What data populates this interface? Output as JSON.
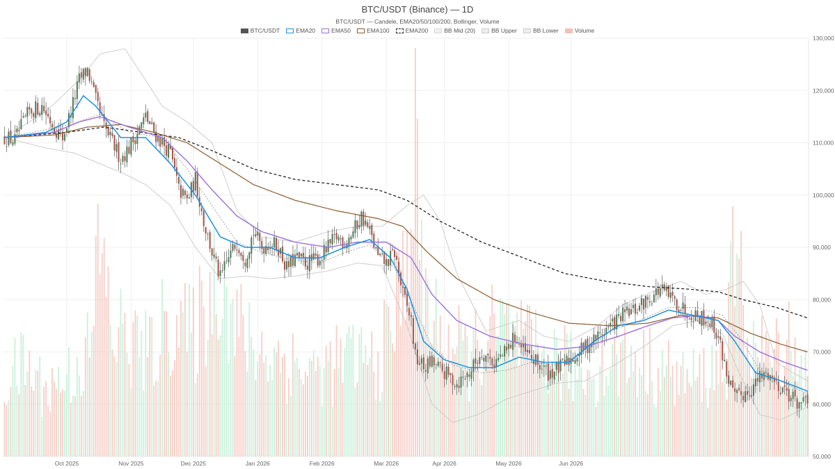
{
  "chart_data": {
    "type": "candlestick",
    "title": "BTC/USDT (Binance) — 1D",
    "subtitle": "BTC/USDT — Candele, EMA20/50/100/200, Bollinger, Volume",
    "legend": [
      {
        "label": "BTC/USDT",
        "color": "#555555",
        "style": "solid-fill"
      },
      {
        "label": "EMA20",
        "color": "#1a8fe0",
        "style": "line"
      },
      {
        "label": "EMA50",
        "color": "#9b6fd8",
        "style": "line"
      },
      {
        "label": "EMA100",
        "color": "#8b5a2b",
        "style": "line"
      },
      {
        "label": "EMA200",
        "color": "#222222",
        "style": "dashed"
      },
      {
        "label": "BB Mid (20)",
        "color": "#bbbbbb",
        "style": "dotted"
      },
      {
        "label": "BB Upper",
        "color": "#cccccc",
        "style": "thin"
      },
      {
        "label": "BB Lower",
        "color": "#cccccc",
        "style": "thin"
      },
      {
        "label": "Volume",
        "color": "#f4c0b8",
        "style": "fill"
      }
    ],
    "x_labels": [
      "Oct 2025",
      "Nov 2025",
      "Dec 2025",
      "Jan 2026",
      "Feb 2026",
      "Mar 2026",
      "Apr 2026",
      "May 2026",
      "Jun 2026"
    ],
    "y_ticks": [
      "50,000",
      "60,000",
      "70,000",
      "80,000",
      "90,000",
      "100,000",
      "110,000",
      "120,000",
      "130,000"
    ],
    "ylim": [
      50000,
      130000
    ],
    "price_path": [
      [
        0,
        111000
      ],
      [
        5,
        110500
      ],
      [
        8,
        113000
      ],
      [
        12,
        116000
      ],
      [
        18,
        117000
      ],
      [
        24,
        113000
      ],
      [
        28,
        111000
      ],
      [
        32,
        116000
      ],
      [
        36,
        122000
      ],
      [
        40,
        124000
      ],
      [
        44,
        118000
      ],
      [
        48,
        113000
      ],
      [
        52,
        110000
      ],
      [
        56,
        107000
      ],
      [
        60,
        109000
      ],
      [
        64,
        112000
      ],
      [
        68,
        115000
      ],
      [
        72,
        112000
      ],
      [
        76,
        110000
      ],
      [
        80,
        108000
      ],
      [
        84,
        101000
      ],
      [
        88,
        99000
      ],
      [
        92,
        103000
      ],
      [
        96,
        95000
      ],
      [
        100,
        89000
      ],
      [
        104,
        84000
      ],
      [
        108,
        88000
      ],
      [
        112,
        91000
      ],
      [
        116,
        88000
      ],
      [
        120,
        93000
      ],
      [
        124,
        90000
      ],
      [
        128,
        91000
      ],
      [
        132,
        90000
      ],
      [
        136,
        86000
      ],
      [
        140,
        88000
      ],
      [
        146,
        87000
      ],
      [
        152,
        88000
      ],
      [
        156,
        90000
      ],
      [
        160,
        92000
      ],
      [
        164,
        91000
      ],
      [
        168,
        93000
      ],
      [
        172,
        96000
      ],
      [
        176,
        93000
      ],
      [
        180,
        88000
      ],
      [
        184,
        87000
      ],
      [
        188,
        89000
      ],
      [
        192,
        81000
      ],
      [
        196,
        76000
      ],
      [
        198,
        69000
      ],
      [
        202,
        67000
      ],
      [
        206,
        68000
      ],
      [
        212,
        66000
      ],
      [
        218,
        64000
      ],
      [
        224,
        66000
      ],
      [
        230,
        70000
      ],
      [
        236,
        68000
      ],
      [
        242,
        70000
      ],
      [
        246,
        73000
      ],
      [
        250,
        70000
      ],
      [
        256,
        68000
      ],
      [
        262,
        66000
      ],
      [
        268,
        67000
      ],
      [
        274,
        69000
      ],
      [
        280,
        71000
      ],
      [
        286,
        73000
      ],
      [
        292,
        75000
      ],
      [
        298,
        77000
      ],
      [
        304,
        78000
      ],
      [
        310,
        80000
      ],
      [
        316,
        82000
      ],
      [
        322,
        80000
      ],
      [
        328,
        78000
      ],
      [
        334,
        77000
      ],
      [
        340,
        76000
      ],
      [
        344,
        73000
      ],
      [
        348,
        66000
      ],
      [
        352,
        61000
      ],
      [
        356,
        62000
      ],
      [
        360,
        63000
      ],
      [
        364,
        65000
      ],
      [
        368,
        66000
      ],
      [
        372,
        64000
      ],
      [
        376,
        63000
      ],
      [
        380,
        61000
      ],
      [
        384,
        60000
      ],
      [
        387,
        60000
      ]
    ],
    "ema20_path": [
      [
        0,
        111000
      ],
      [
        20,
        112000
      ],
      [
        30,
        114000
      ],
      [
        38,
        119000
      ],
      [
        44,
        117000
      ],
      [
        56,
        111000
      ],
      [
        68,
        111000
      ],
      [
        80,
        106000
      ],
      [
        92,
        100000
      ],
      [
        104,
        92000
      ],
      [
        116,
        90000
      ],
      [
        128,
        90000
      ],
      [
        140,
        88000
      ],
      [
        152,
        88000
      ],
      [
        164,
        90000
      ],
      [
        176,
        91500
      ],
      [
        186,
        88000
      ],
      [
        194,
        82000
      ],
      [
        202,
        72000
      ],
      [
        212,
        68500
      ],
      [
        224,
        67000
      ],
      [
        236,
        67000
      ],
      [
        248,
        69000
      ],
      [
        260,
        68000
      ],
      [
        272,
        68000
      ],
      [
        284,
        72000
      ],
      [
        296,
        75000
      ],
      [
        308,
        76000
      ],
      [
        320,
        78000
      ],
      [
        332,
        77000
      ],
      [
        344,
        76000
      ],
      [
        352,
        72000
      ],
      [
        362,
        66000
      ],
      [
        374,
        64500
      ],
      [
        387,
        62500
      ]
    ],
    "ema50_path": [
      [
        0,
        111000
      ],
      [
        24,
        112000
      ],
      [
        36,
        114000
      ],
      [
        46,
        115000
      ],
      [
        60,
        113000
      ],
      [
        76,
        111000
      ],
      [
        88,
        106500
      ],
      [
        100,
        101000
      ],
      [
        112,
        96000
      ],
      [
        124,
        93000
      ],
      [
        140,
        91000
      ],
      [
        156,
        90000
      ],
      [
        170,
        91000
      ],
      [
        184,
        91000
      ],
      [
        196,
        88000
      ],
      [
        206,
        81000
      ],
      [
        218,
        76000
      ],
      [
        234,
        73000
      ],
      [
        250,
        71500
      ],
      [
        266,
        70500
      ],
      [
        280,
        71000
      ],
      [
        296,
        73000
      ],
      [
        310,
        75000
      ],
      [
        322,
        76500
      ],
      [
        334,
        77000
      ],
      [
        344,
        76000
      ],
      [
        352,
        73000
      ],
      [
        364,
        70000
      ],
      [
        376,
        68000
      ],
      [
        387,
        66500
      ]
    ],
    "ema100_path": [
      [
        0,
        111000
      ],
      [
        24,
        111500
      ],
      [
        40,
        113000
      ],
      [
        56,
        113500
      ],
      [
        72,
        112000
      ],
      [
        88,
        110000
      ],
      [
        104,
        106000
      ],
      [
        120,
        102000
      ],
      [
        140,
        99000
      ],
      [
        160,
        97000
      ],
      [
        180,
        95500
      ],
      [
        192,
        94000
      ],
      [
        204,
        89000
      ],
      [
        218,
        84000
      ],
      [
        236,
        80000
      ],
      [
        254,
        77500
      ],
      [
        272,
        75500
      ],
      [
        292,
        75000
      ],
      [
        310,
        75500
      ],
      [
        326,
        77000
      ],
      [
        344,
        76500
      ],
      [
        360,
        73500
      ],
      [
        374,
        71500
      ],
      [
        387,
        70000
      ]
    ],
    "ema200_path": [
      [
        0,
        111000
      ],
      [
        30,
        112000
      ],
      [
        48,
        113000
      ],
      [
        66,
        112000
      ],
      [
        84,
        111000
      ],
      [
        100,
        108500
      ],
      [
        120,
        105000
      ],
      [
        140,
        103000
      ],
      [
        160,
        102000
      ],
      [
        180,
        101000
      ],
      [
        194,
        99000
      ],
      [
        210,
        95000
      ],
      [
        230,
        91000
      ],
      [
        250,
        88000
      ],
      [
        270,
        85000
      ],
      [
        290,
        83500
      ],
      [
        310,
        82500
      ],
      [
        330,
        82000
      ],
      [
        344,
        81500
      ],
      [
        356,
        80000
      ],
      [
        372,
        78500
      ],
      [
        387,
        76500
      ]
    ],
    "bb_mid_path": [
      [
        0,
        111000
      ],
      [
        20,
        112500
      ],
      [
        32,
        113500
      ],
      [
        46,
        115500
      ],
      [
        60,
        112000
      ],
      [
        76,
        111000
      ],
      [
        88,
        105000
      ],
      [
        100,
        98000
      ],
      [
        112,
        91000
      ],
      [
        124,
        89000
      ],
      [
        140,
        87500
      ],
      [
        152,
        87000
      ],
      [
        164,
        89000
      ],
      [
        176,
        90500
      ],
      [
        188,
        86000
      ],
      [
        198,
        78000
      ],
      [
        206,
        71000
      ],
      [
        216,
        67500
      ],
      [
        230,
        66000
      ],
      [
        242,
        66500
      ],
      [
        254,
        68000
      ],
      [
        266,
        67500
      ],
      [
        280,
        70000
      ],
      [
        292,
        74000
      ],
      [
        306,
        76000
      ],
      [
        320,
        78500
      ],
      [
        334,
        78500
      ],
      [
        346,
        77000
      ],
      [
        354,
        73000
      ],
      [
        364,
        66500
      ],
      [
        376,
        64000
      ],
      [
        387,
        62000
      ]
    ],
    "bb_upper_path": [
      [
        0,
        111000
      ],
      [
        20,
        116000
      ],
      [
        36,
        122000
      ],
      [
        46,
        127000
      ],
      [
        58,
        128000
      ],
      [
        68,
        122000
      ],
      [
        76,
        117000
      ],
      [
        88,
        114000
      ],
      [
        100,
        110000
      ],
      [
        112,
        97000
      ],
      [
        124,
        92000
      ],
      [
        140,
        91000
      ],
      [
        156,
        93000
      ],
      [
        170,
        94000
      ],
      [
        182,
        94000
      ],
      [
        194,
        98000
      ],
      [
        202,
        100000
      ],
      [
        210,
        95000
      ],
      [
        218,
        85000
      ],
      [
        232,
        74000
      ],
      [
        248,
        76000
      ],
      [
        260,
        73000
      ],
      [
        272,
        72000
      ],
      [
        286,
        75000
      ],
      [
        298,
        79000
      ],
      [
        312,
        81500
      ],
      [
        326,
        83500
      ],
      [
        338,
        81000
      ],
      [
        348,
        82000
      ],
      [
        356,
        83500
      ],
      [
        364,
        79000
      ],
      [
        372,
        68000
      ],
      [
        380,
        66000
      ],
      [
        387,
        64500
      ]
    ],
    "bb_lower_path": [
      [
        0,
        111000
      ],
      [
        20,
        109000
      ],
      [
        34,
        108000
      ],
      [
        46,
        106000
      ],
      [
        58,
        104000
      ],
      [
        68,
        102000
      ],
      [
        80,
        98000
      ],
      [
        92,
        90000
      ],
      [
        104,
        84000
      ],
      [
        116,
        84500
      ],
      [
        128,
        84000
      ],
      [
        140,
        84500
      ],
      [
        156,
        85500
      ],
      [
        170,
        87000
      ],
      [
        182,
        86500
      ],
      [
        194,
        75000
      ],
      [
        206,
        60000
      ],
      [
        216,
        56500
      ],
      [
        228,
        58000
      ],
      [
        242,
        61000
      ],
      [
        254,
        62500
      ],
      [
        266,
        64000
      ],
      [
        280,
        64500
      ],
      [
        294,
        67500
      ],
      [
        308,
        71000
      ],
      [
        322,
        75000
      ],
      [
        334,
        76000
      ],
      [
        346,
        73500
      ],
      [
        354,
        66000
      ],
      [
        364,
        58000
      ],
      [
        374,
        57000
      ],
      [
        387,
        59500
      ]
    ],
    "volume_path": [
      [
        0,
        0.18
      ],
      [
        10,
        0.22
      ],
      [
        20,
        0.16
      ],
      [
        32,
        0.2
      ],
      [
        42,
        0.26
      ],
      [
        46,
        0.55
      ],
      [
        48,
        0.42
      ],
      [
        52,
        0.3
      ],
      [
        60,
        0.28
      ],
      [
        70,
        0.24
      ],
      [
        80,
        0.34
      ],
      [
        90,
        0.28
      ],
      [
        100,
        0.4
      ],
      [
        104,
        0.48
      ],
      [
        110,
        0.32
      ],
      [
        120,
        0.26
      ],
      [
        130,
        0.24
      ],
      [
        140,
        0.22
      ],
      [
        150,
        0.2
      ],
      [
        160,
        0.22
      ],
      [
        170,
        0.24
      ],
      [
        180,
        0.22
      ],
      [
        186,
        0.3
      ],
      [
        192,
        0.42
      ],
      [
        198,
        0.72
      ],
      [
        202,
        0.4
      ],
      [
        208,
        0.3
      ],
      [
        216,
        0.26
      ],
      [
        224,
        0.24
      ],
      [
        232,
        0.28
      ],
      [
        240,
        0.3
      ],
      [
        250,
        0.26
      ],
      [
        260,
        0.24
      ],
      [
        270,
        0.22
      ],
      [
        280,
        0.2
      ],
      [
        290,
        0.22
      ],
      [
        300,
        0.24
      ],
      [
        310,
        0.22
      ],
      [
        320,
        0.2
      ],
      [
        330,
        0.18
      ],
      [
        340,
        0.2
      ],
      [
        348,
        0.24
      ],
      [
        352,
        0.48
      ],
      [
        356,
        0.36
      ],
      [
        362,
        0.26
      ],
      [
        370,
        0.22
      ],
      [
        378,
        0.3
      ],
      [
        387,
        0.18
      ]
    ]
  }
}
